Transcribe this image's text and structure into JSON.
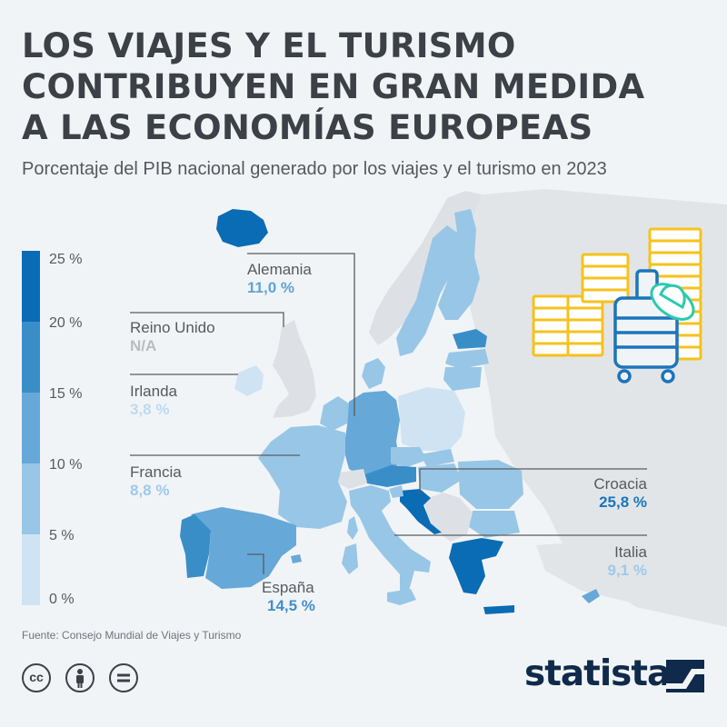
{
  "header": {
    "title_lines": [
      "LOS VIAJES Y EL TURISMO",
      "CONTRIBUYEN EN GRAN MEDIDA",
      "A LAS ECONOMÍAS EUROPEAS"
    ],
    "subtitle": "Porcentaje del PIB nacional generado por los viajes y el turismo en 2023"
  },
  "legend": {
    "ticks": [
      "25 %",
      "20 %",
      "15 %",
      "10 %",
      "5 %",
      "0 %"
    ],
    "bands": [
      "#0a6cb4",
      "#3a8ec8",
      "#66a8d8",
      "#98c6e6",
      "#cfe3f3"
    ]
  },
  "colors": {
    "no_data": "#dde1e5",
    "non_eu": "#e2e5e8",
    "label_strong": "#1b75bc",
    "label_mid": "#5ea3d6",
    "label_light": "#9ec9ea",
    "na": "#b7bcc1",
    "leader": "#585c61",
    "coin": "#f6c21c",
    "suitcase": "#1b75bc",
    "hat": "#2cc9b0",
    "brand": "#0f2a4a"
  },
  "countries": [
    {
      "name": "Alemania",
      "value": "11,0 %"
    },
    {
      "name": "Reino Unido",
      "value": "N/A"
    },
    {
      "name": "Irlanda",
      "value": "3,8 %"
    },
    {
      "name": "Francia",
      "value": "8,8 %"
    },
    {
      "name": "España",
      "value": "14,5 %"
    },
    {
      "name": "Croacia",
      "value": "25,8 %"
    },
    {
      "name": "Italia",
      "value": "9,1 %"
    }
  ],
  "footer": {
    "source": "Fuente: Consejo Mundial de Viajes y Turismo",
    "license_icons": [
      "cc-icon",
      "attribution-icon",
      "no-derivatives-icon"
    ],
    "brand": "statista"
  }
}
